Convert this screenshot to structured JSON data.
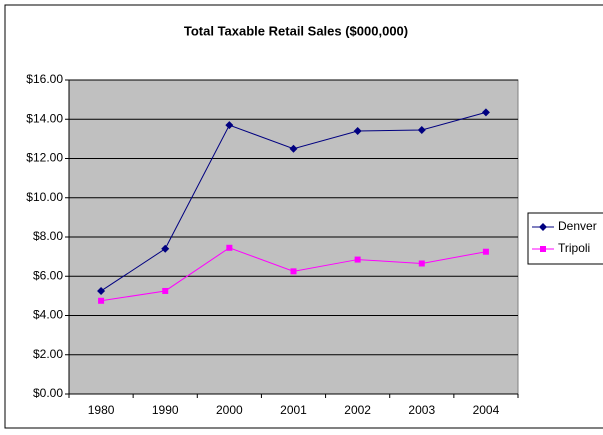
{
  "chart_data": {
    "type": "line",
    "title": "Total Taxable Retail Sales ($000,000)",
    "categories": [
      "1980",
      "1990",
      "2000",
      "2001",
      "2002",
      "2003",
      "2004"
    ],
    "series": [
      {
        "name": "Denver",
        "color": "#000080",
        "values": [
          5.25,
          7.4,
          13.7,
          12.5,
          13.4,
          13.45,
          14.35
        ]
      },
      {
        "name": "Tripoli",
        "color": "#ff00ff",
        "values": [
          4.75,
          5.25,
          7.45,
          6.25,
          6.85,
          6.65,
          7.25
        ]
      }
    ],
    "ylim": [
      0,
      16
    ],
    "yticks": [
      {
        "value": 0,
        "label": "$0.00"
      },
      {
        "value": 2,
        "label": "$2.00"
      },
      {
        "value": 4,
        "label": "$4.00"
      },
      {
        "value": 6,
        "label": "$6.00"
      },
      {
        "value": 8,
        "label": "$8.00"
      },
      {
        "value": 10,
        "label": "$10.00"
      },
      {
        "value": 12,
        "label": "$12.00"
      },
      {
        "value": 14,
        "label": "$14.00"
      },
      {
        "value": 16,
        "label": "$16.00"
      }
    ],
    "grid": true,
    "legend": "right"
  }
}
